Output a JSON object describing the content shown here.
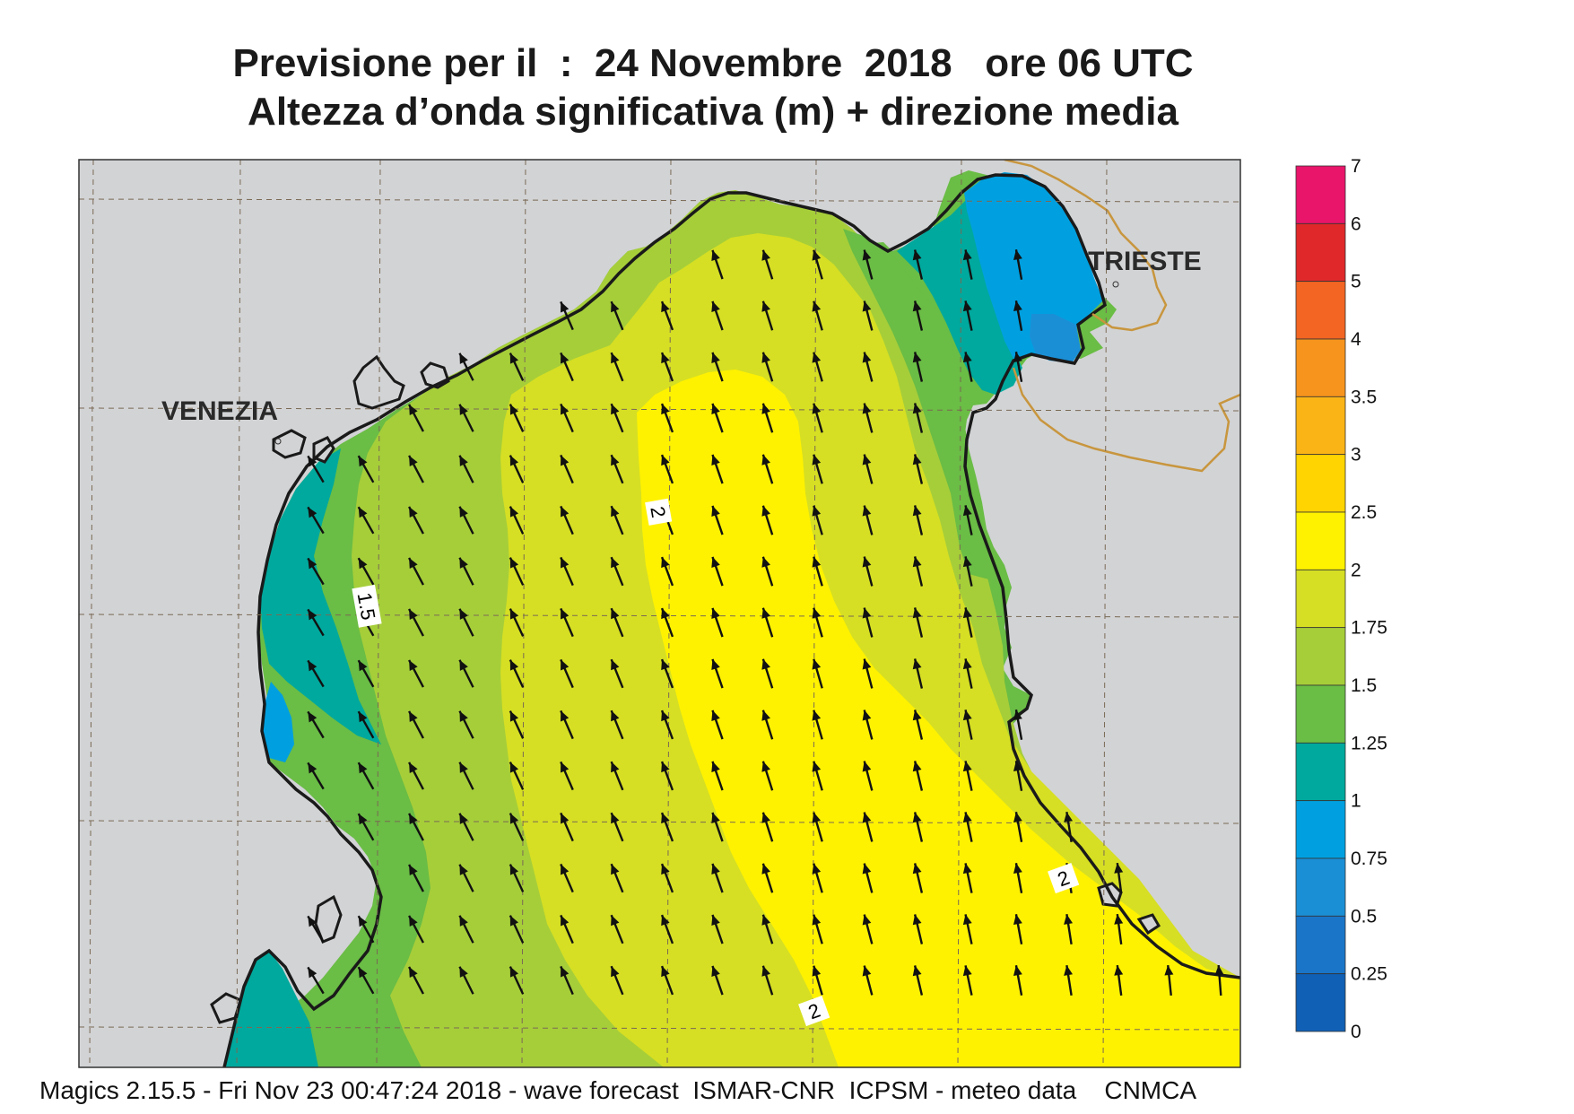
{
  "title_line1": "Previsione per il  :  24 Novembre  2018   ore 06 UTC",
  "title_line2": "Altezza d’onda significativa (m) + direzione media",
  "places": [
    "VENEZIA",
    "TRIESTE"
  ],
  "contour_labels": [
    "2",
    "1.5",
    "2",
    "2"
  ],
  "colorbar": {
    "labels": [
      "7",
      "6",
      "5",
      "4",
      "3.5",
      "3",
      "2.5",
      "2",
      "1.75",
      "1.5",
      "1.25",
      "1",
      "0.75",
      "0.5",
      "0.25",
      "0"
    ],
    "colors": [
      "#e8156a",
      "#e0282a",
      "#f26522",
      "#f7941d",
      "#fbb416",
      "#ffd400",
      "#fff200",
      "#d6df23",
      "#a6ce39",
      "#6abd45",
      "#00a99d",
      "#00a0e0",
      "#1b8fd6",
      "#1a75c8",
      "#1060b5"
    ]
  },
  "colors": {
    "land": "#d2d3d5",
    "coast": "#1a1a1a",
    "border": "#c8963e",
    "arrow": "#111111"
  },
  "legend_colors": {
    "lt_0_75": "#1b8fd6",
    "0_75_1": "#00a0e0",
    "1_1_25": "#00a99d",
    "1_25_1_5": "#6abd45",
    "1_5_1_75": "#a6ce39",
    "1_75_2": "#d6df23",
    "2_2_5": "#fff200"
  },
  "footer": "Magics 2.15.5 - Fri Nov 23 00:47:24 2018 - wave forecast  ISMAR-CNR  ICPSM - meteo data    CNMCA"
}
